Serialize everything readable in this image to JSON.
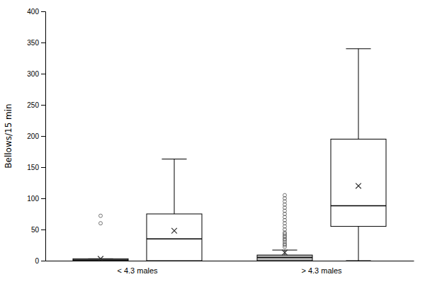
{
  "chart_data": {
    "type": "box",
    "ylabel": "Bellows/15 min",
    "categories": [
      "< 4.3 males",
      "> 4.3 males"
    ],
    "values": [
      [
        {
          "q1": 0,
          "median": 1,
          "q3": 3,
          "whisker_low": 0,
          "whisker_high": 3,
          "mean": 3,
          "fliers": [
            60,
            72
          ],
          "color": "white"
        },
        {
          "q1": 0,
          "median": 35,
          "q3": 75,
          "whisker_low": 0,
          "whisker_high": 163,
          "mean": 48,
          "fliers": [],
          "color": "white"
        }
      ],
      [
        {
          "q1": 0,
          "median": 5,
          "q3": 9,
          "whisker_low": 0,
          "whisker_high": 17,
          "mean": 13,
          "fliers": [
            22,
            25,
            27,
            30,
            33,
            35,
            38,
            40,
            43,
            45,
            50,
            55,
            60,
            65,
            70,
            75,
            80,
            85,
            90,
            95,
            100,
            105
          ],
          "color": "#bbbbbb"
        },
        {
          "q1": 55,
          "median": 88,
          "q3": 195,
          "whisker_low": 0,
          "whisker_high": 340,
          "mean": 120,
          "fliers": [],
          "color": "white"
        }
      ]
    ],
    "ylim": [
      0,
      400
    ],
    "yticks": [
      0,
      50,
      100,
      150,
      200,
      250,
      300,
      350,
      400
    ],
    "grid": false
  }
}
